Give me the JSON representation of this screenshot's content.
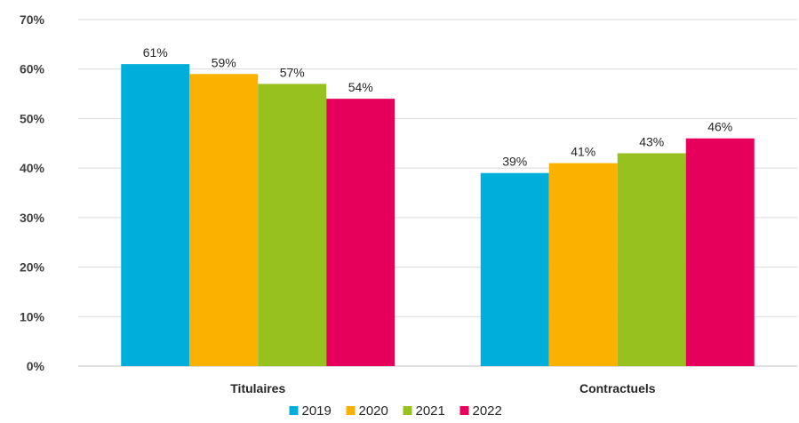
{
  "chart_data": {
    "type": "bar",
    "title": "",
    "xlabel": "",
    "ylabel": "",
    "categories": [
      "Titulaires",
      "Contractuels"
    ],
    "series": [
      {
        "name": "2019",
        "values": [
          61,
          39
        ],
        "color": "#00AEDB"
      },
      {
        "name": "2020",
        "values": [
          59,
          41
        ],
        "color": "#FBB100"
      },
      {
        "name": "2021",
        "values": [
          57,
          43
        ],
        "color": "#96C11F"
      },
      {
        "name": "2022",
        "values": [
          54,
          46
        ],
        "color": "#E6005C"
      }
    ],
    "data_labels": [
      [
        "61%",
        "39%"
      ],
      [
        "59%",
        "41%"
      ],
      [
        "57%",
        "43%"
      ],
      [
        "54%",
        "46%"
      ]
    ],
    "ylim": [
      0,
      70
    ],
    "yticks": [
      0,
      10,
      20,
      30,
      40,
      50,
      60,
      70
    ],
    "ytick_labels": [
      "0%",
      "10%",
      "20%",
      "30%",
      "40%",
      "50%",
      "60%",
      "70%"
    ],
    "grid": true,
    "legend_position": "bottom"
  }
}
